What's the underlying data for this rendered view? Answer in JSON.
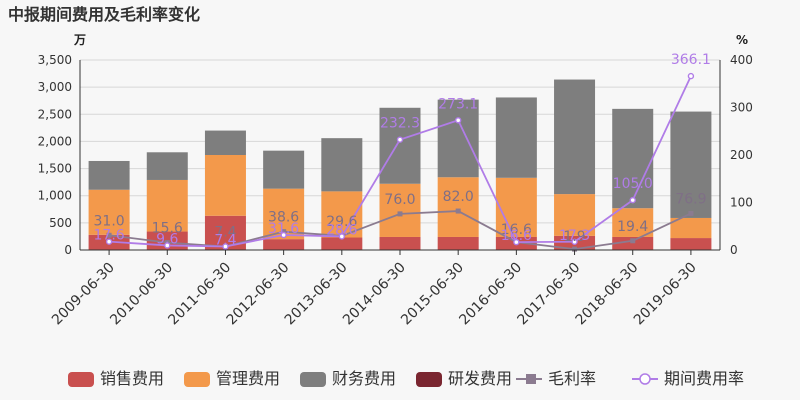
{
  "page_title": "中报期间费用及毛利率变化",
  "units": {
    "left": "万",
    "right": "%"
  },
  "chart_data": {
    "type": "bar",
    "title": "中报期间费用及毛利率变化",
    "categories": [
      "2009-06-30",
      "2010-06-30",
      "2011-06-30",
      "2012-06-30",
      "2013-06-30",
      "2014-06-30",
      "2015-06-30",
      "2016-06-30",
      "2017-06-30",
      "2018-06-30",
      "2019-06-30"
    ],
    "left_axis": {
      "min": 0,
      "max": 3500,
      "step": 500,
      "ticks": [
        "0",
        "500",
        "1,000",
        "1,500",
        "2,000",
        "2,500",
        "3,000",
        "3,500"
      ]
    },
    "right_axis": {
      "min": 0,
      "max": 400,
      "step": 100,
      "ticks": [
        "0",
        "100",
        "200",
        "300",
        "400"
      ]
    },
    "bar_series": [
      {
        "name": "销售费用",
        "color": "#c9504f",
        "values": [
          280,
          340,
          630,
          200,
          230,
          240,
          240,
          240,
          260,
          240,
          220
        ]
      },
      {
        "name": "管理费用",
        "color": "#f3994b",
        "values": [
          830,
          950,
          1120,
          930,
          850,
          980,
          1100,
          1090,
          770,
          530,
          370
        ]
      },
      {
        "name": "财务费用",
        "color": "#7e7e7e",
        "values": [
          530,
          510,
          450,
          700,
          980,
          1400,
          1430,
          1480,
          2110,
          1830,
          1960
        ]
      },
      {
        "name": "研发费用",
        "color": "#7a2630",
        "values": [
          0,
          0,
          0,
          0,
          0,
          0,
          0,
          0,
          0,
          0,
          0
        ]
      }
    ],
    "line_series": [
      {
        "name": "毛利率",
        "color": "#8b7b90",
        "values": [
          31.0,
          15.6,
          7.4,
          38.6,
          29.6,
          76.0,
          82.0,
          16.6,
          1.9,
          19.4,
          76.9
        ],
        "labels": [
          "31.0",
          "15.6",
          "7.4",
          "38.6",
          "29.6",
          "76.0",
          "82.0",
          "16.6",
          "1.9",
          "19.4",
          "76.9"
        ]
      },
      {
        "name": "期间费用率",
        "color": "#b07ce7",
        "values": [
          17.6,
          9.6,
          7.4,
          31.6,
          28.6,
          232.3,
          273.1,
          16.6,
          17.3,
          105.0,
          366.1
        ],
        "labels": [
          "17.6",
          "9.6",
          "7.4",
          "31.6",
          "28.6",
          "232.3",
          "273.1",
          "16.6",
          "17.3",
          "105.0",
          "366.1"
        ]
      }
    ],
    "legend_position": "bottom",
    "grid": true
  }
}
